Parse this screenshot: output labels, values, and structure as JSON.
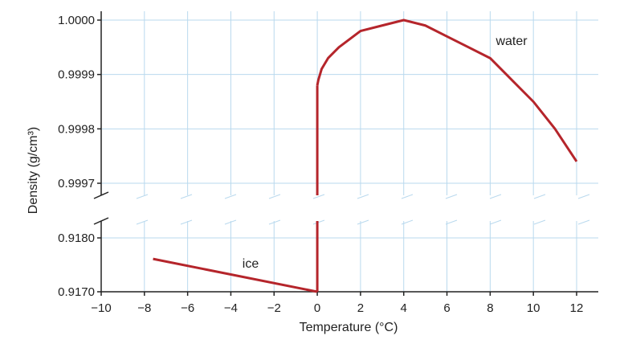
{
  "chart_data": {
    "type": "line",
    "title": "",
    "xlabel": "Temperature (°C)",
    "ylabel": "Density (g/cm³)",
    "xlim": [
      -10,
      12
    ],
    "x_ticks": [
      -10,
      -8,
      -6,
      -4,
      -2,
      0,
      2,
      4,
      6,
      8,
      10,
      12
    ],
    "x_tick_labels": [
      "−10",
      "−8",
      "−6",
      "−4",
      "−2",
      "0",
      "2",
      "4",
      "6",
      "8",
      "10",
      "12"
    ],
    "y_axis_broken": true,
    "y_segments": [
      {
        "range": [
          0.917,
          0.918
        ],
        "ticks": [
          0.917,
          0.918
        ],
        "tick_labels": [
          "0.9170",
          "0.9180"
        ]
      },
      {
        "range": [
          0.9997,
          1.0
        ],
        "ticks": [
          0.9997,
          0.9998,
          0.9999,
          1.0
        ],
        "tick_labels": [
          "0.9997",
          "0.9998",
          "0.9999",
          "1.0000"
        ]
      }
    ],
    "grid": true,
    "series": [
      {
        "name": "ice",
        "color": "#b5252b",
        "points": [
          [
            -7.6,
            0.91761
          ],
          [
            0,
            0.917
          ]
        ]
      },
      {
        "name": "water",
        "color": "#b5252b",
        "points": [
          [
            0,
            0.99988
          ],
          [
            0.05,
            0.99989
          ],
          [
            0.2,
            0.99991
          ],
          [
            0.5,
            0.99993
          ],
          [
            1,
            0.99995
          ],
          [
            2,
            0.99998
          ],
          [
            3,
            0.99999
          ],
          [
            4,
            1.0
          ],
          [
            5,
            0.99999
          ],
          [
            6,
            0.99997
          ],
          [
            7,
            0.99995
          ],
          [
            8,
            0.99993
          ],
          [
            9,
            0.99989
          ],
          [
            10,
            0.99985
          ],
          [
            11,
            0.9998
          ],
          [
            12,
            0.99974
          ]
        ]
      }
    ]
  }
}
